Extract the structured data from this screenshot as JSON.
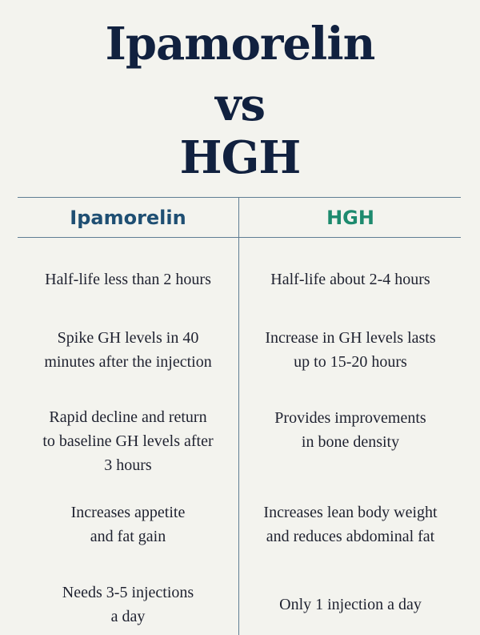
{
  "title": {
    "line1": "Ipamorelin",
    "line2": "vs",
    "line3": "HGH"
  },
  "columns": {
    "left": "Ipamorelin",
    "right": "HGH"
  },
  "rows": [
    {
      "left": [
        "Half-life less than 2 hours"
      ],
      "right": [
        "Half-life about 2-4 hours"
      ]
    },
    {
      "left": [
        "Spike GH levels in 40",
        "minutes after the injection"
      ],
      "right": [
        "Increase in GH levels lasts",
        "up to 15-20 hours"
      ]
    },
    {
      "left": [
        "Rapid decline and return",
        "to baseline GH levels after",
        "3 hours"
      ],
      "right": [
        "Provides improvements",
        "in bone density"
      ]
    },
    {
      "left": [
        "Increases appetite",
        "and fat gain"
      ],
      "right": [
        "Increases lean body weight",
        "and reduces abdominal fat"
      ]
    },
    {
      "left": [
        "Needs 3-5 injections",
        "a day"
      ],
      "right": [
        "Only 1 injection a day"
      ]
    }
  ],
  "colors": {
    "background": "#f3f3ee",
    "title": "#11213f",
    "left_heading": "#1f4f73",
    "right_heading": "#1d8a6e",
    "divider": "#5f7d93"
  }
}
